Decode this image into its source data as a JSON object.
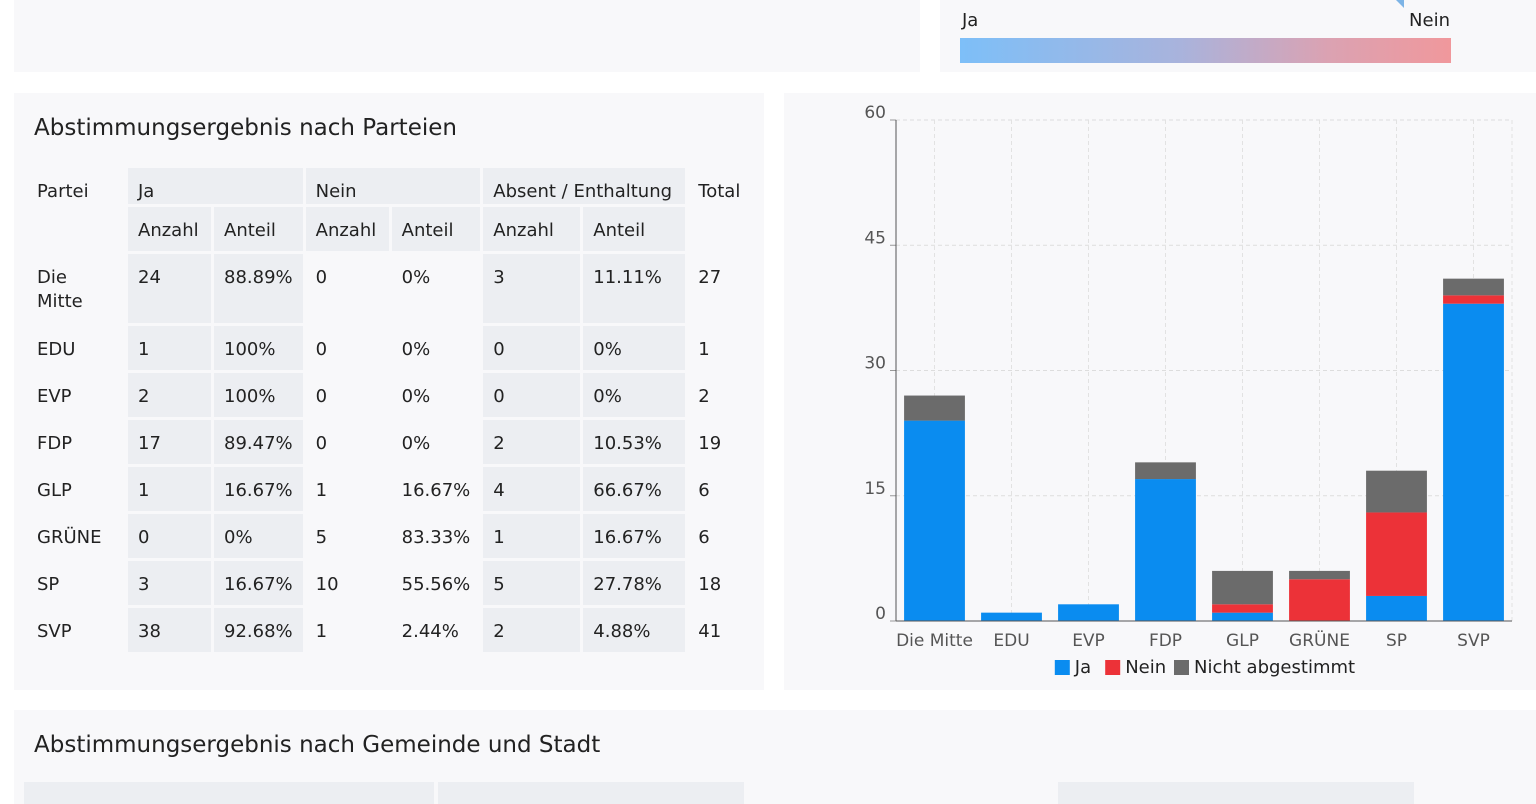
{
  "legend": {
    "ja": "Ja",
    "nein": "Nein"
  },
  "parties_section": {
    "title": "Abstimmungsergebnis nach Parteien",
    "headers": {
      "partei": "Partei",
      "ja": "Ja",
      "nein": "Nein",
      "absent": "Absent / Enthaltung",
      "total": "Total",
      "anzahl": "Anzahl",
      "anteil": "Anteil"
    },
    "rows": [
      {
        "partei": "Die Mitte",
        "ja_anzahl": "24",
        "ja_anteil": "88.89%",
        "nein_anzahl": "0",
        "nein_anteil": "0%",
        "abs_anzahl": "3",
        "abs_anteil": "11.11%",
        "total": "27"
      },
      {
        "partei": "EDU",
        "ja_anzahl": "1",
        "ja_anteil": "100%",
        "nein_anzahl": "0",
        "nein_anteil": "0%",
        "abs_anzahl": "0",
        "abs_anteil": "0%",
        "total": "1"
      },
      {
        "partei": "EVP",
        "ja_anzahl": "2",
        "ja_anteil": "100%",
        "nein_anzahl": "0",
        "nein_anteil": "0%",
        "abs_anzahl": "0",
        "abs_anteil": "0%",
        "total": "2"
      },
      {
        "partei": "FDP",
        "ja_anzahl": "17",
        "ja_anteil": "89.47%",
        "nein_anzahl": "0",
        "nein_anteil": "0%",
        "abs_anzahl": "2",
        "abs_anteil": "10.53%",
        "total": "19"
      },
      {
        "partei": "GLP",
        "ja_anzahl": "1",
        "ja_anteil": "16.67%",
        "nein_anzahl": "1",
        "nein_anteil": "16.67%",
        "abs_anzahl": "4",
        "abs_anteil": "66.67%",
        "total": "6"
      },
      {
        "partei": "GRÜNE",
        "ja_anzahl": "0",
        "ja_anteil": "0%",
        "nein_anzahl": "5",
        "nein_anteil": "83.33%",
        "abs_anzahl": "1",
        "abs_anteil": "16.67%",
        "total": "6"
      },
      {
        "partei": "SP",
        "ja_anzahl": "3",
        "ja_anteil": "16.67%",
        "nein_anzahl": "10",
        "nein_anteil": "55.56%",
        "abs_anzahl": "5",
        "abs_anteil": "27.78%",
        "total": "18"
      },
      {
        "partei": "SVP",
        "ja_anzahl": "38",
        "ja_anteil": "92.68%",
        "nein_anzahl": "1",
        "nein_anteil": "2.44%",
        "abs_anzahl": "2",
        "abs_anteil": "4.88%",
        "total": "41"
      }
    ]
  },
  "chart_data": {
    "type": "bar",
    "stacked": true,
    "categories": [
      "Die Mitte",
      "EDU",
      "EVP",
      "FDP",
      "GLP",
      "GRÜNE",
      "SP",
      "SVP"
    ],
    "series": [
      {
        "name": "Ja",
        "color": "#0a8cf0",
        "values": [
          24,
          1,
          2,
          17,
          1,
          0,
          3,
          38
        ]
      },
      {
        "name": "Nein",
        "color": "#ec3238",
        "values": [
          0,
          0,
          0,
          0,
          1,
          5,
          10,
          1
        ]
      },
      {
        "name": "Nicht abgestimmt",
        "color": "#6b6b6b",
        "values": [
          3,
          0,
          0,
          2,
          4,
          1,
          5,
          2
        ]
      }
    ],
    "yticks": [
      0,
      15,
      30,
      45,
      60
    ],
    "ylim": [
      0,
      60
    ],
    "grid": true,
    "legend_position": "bottom"
  },
  "gemeinde_section": {
    "title": "Abstimmungsergebnis nach Gemeinde und Stadt"
  }
}
